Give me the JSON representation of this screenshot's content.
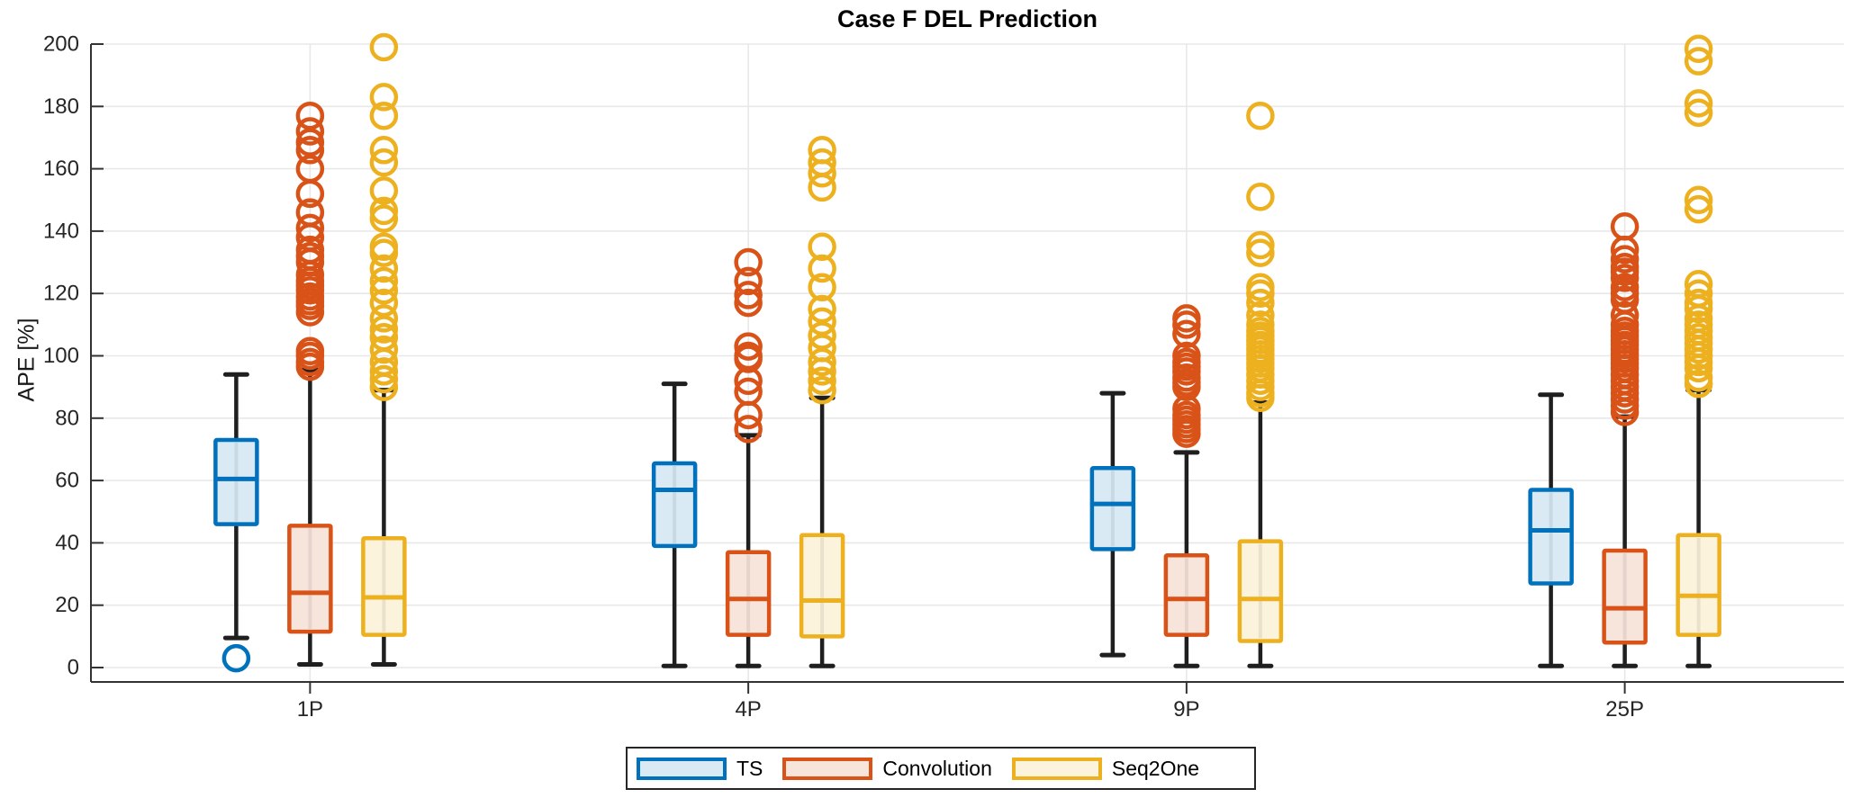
{
  "chart_data": {
    "type": "boxplot",
    "title": "Case F DEL Prediction",
    "ylabel": "APE [%]",
    "xlabel": "",
    "categories": [
      "1P",
      "4P",
      "9P",
      "25P"
    ],
    "yticks": [
      0,
      20,
      40,
      60,
      80,
      100,
      120,
      140,
      160,
      180,
      200
    ],
    "ylim": [
      0,
      200
    ],
    "grid": true,
    "legend_position": "bottom",
    "series": [
      {
        "name": "TS",
        "color": "#0072BD",
        "fill": "#D9EAF5",
        "boxes": [
          {
            "category": "1P",
            "whisker_low": 9.5,
            "q1": 46,
            "median": 60.5,
            "q3": 73,
            "whisker_high": 94,
            "outliers": [
              3
            ]
          },
          {
            "category": "4P",
            "whisker_low": 0.5,
            "q1": 39,
            "median": 57,
            "q3": 65.5,
            "whisker_high": 91,
            "outliers": []
          },
          {
            "category": "9P",
            "whisker_low": 4,
            "q1": 38,
            "median": 52.5,
            "q3": 64,
            "whisker_high": 88,
            "outliers": []
          },
          {
            "category": "25P",
            "whisker_low": 0.5,
            "q1": 27,
            "median": 44,
            "q3": 57,
            "whisker_high": 87.5,
            "outliers": []
          }
        ]
      },
      {
        "name": "Convolution",
        "color": "#D95319",
        "fill": "#F7E5DC",
        "boxes": [
          {
            "category": "1P",
            "whisker_low": 1,
            "q1": 11.5,
            "median": 24,
            "q3": 45.5,
            "whisker_high": 95.5,
            "outliers": [
              96.5,
              98,
              100,
              101.5,
              114,
              116,
              117.5,
              119,
              121,
              122.5,
              124,
              126,
              130,
              132,
              134,
              138,
              141,
              146,
              152,
              160,
              166,
              168.5,
              172,
              177
            ]
          },
          {
            "category": "4P",
            "whisker_low": 0.5,
            "q1": 10.5,
            "median": 22,
            "q3": 37,
            "whisker_high": 74.5,
            "outliers": [
              76.5,
              81,
              88.5,
              92,
              99,
              100,
              103,
              117,
              119.5,
              124,
              130
            ]
          },
          {
            "category": "9P",
            "whisker_low": 0.5,
            "q1": 10.5,
            "median": 22,
            "q3": 36,
            "whisker_high": 69,
            "outliers": [
              75,
              76.5,
              78,
              79.5,
              81,
              83,
              90,
              91.5,
              93,
              95,
              96.5,
              98,
              100,
              107,
              110,
              112
            ]
          },
          {
            "category": "25P",
            "whisker_low": 0.5,
            "q1": 8,
            "median": 19,
            "q3": 37.5,
            "whisker_high": 80.5,
            "outliers": [
              82,
              84,
              86,
              88,
              90,
              92,
              94,
              96,
              97.5,
              99,
              100.5,
              102,
              103.5,
              105,
              106.5,
              108,
              110,
              113,
              118,
              120,
              122,
              125,
              127,
              128.5,
              131,
              134,
              141.5
            ]
          }
        ]
      },
      {
        "name": "Seq2One",
        "color": "#EDB120",
        "fill": "#FCF3DD",
        "boxes": [
          {
            "category": "1P",
            "whisker_low": 1,
            "q1": 10.5,
            "median": 22.5,
            "q3": 41.5,
            "whisker_high": 89,
            "outliers": [
              90,
              92.5,
              95,
              98,
              102,
              106,
              108.5,
              112,
              117,
              121,
              124,
              128,
              133,
              135,
              144,
              146.5,
              153,
              162,
              166,
              177,
              183,
              199
            ]
          },
          {
            "category": "4P",
            "whisker_low": 0.5,
            "q1": 10,
            "median": 21.5,
            "q3": 42.5,
            "whisker_high": 86.5,
            "outliers": [
              89,
              92,
              95,
              98,
              102.5,
              106.5,
              111,
              115,
              122,
              128,
              135,
              154,
              158.5,
              162,
              166
            ]
          },
          {
            "category": "9P",
            "whisker_low": 0.5,
            "q1": 8.5,
            "median": 22,
            "q3": 40.5,
            "whisker_high": 85,
            "outliers": [
              86.5,
              88,
              90,
              92,
              94,
              96,
              97.5,
              99,
              100.5,
              102,
              103.5,
              105,
              106.5,
              108,
              110,
              113,
              117,
              120,
              122,
              133,
              135.5,
              151,
              177
            ]
          },
          {
            "category": "25P",
            "whisker_low": 0.5,
            "q1": 10.5,
            "median": 23,
            "q3": 42.5,
            "whisker_high": 89,
            "outliers": [
              91,
              93,
              96,
              98,
              100,
              102,
              104,
              106,
              108,
              110,
              112,
              115,
              117,
              120,
              123,
              147,
              150,
              178,
              181,
              194.5,
              198.5
            ]
          }
        ]
      }
    ]
  }
}
